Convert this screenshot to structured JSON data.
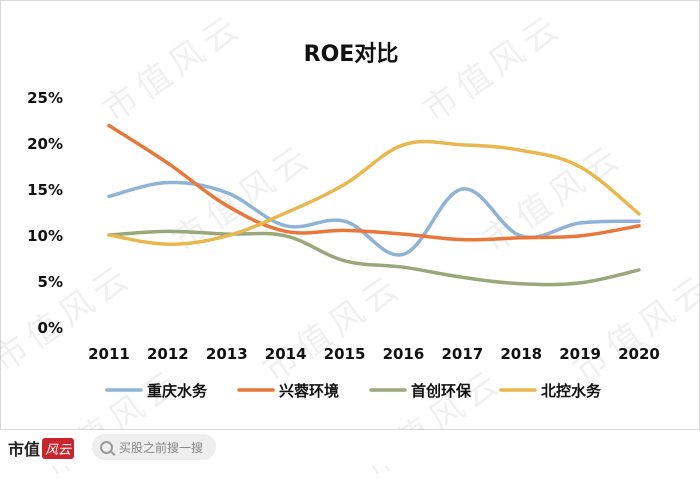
{
  "chart_data": {
    "type": "line",
    "title": "ROE对比",
    "categories": [
      "2011",
      "2012",
      "2013",
      "2014",
      "2015",
      "2016",
      "2017",
      "2018",
      "2019",
      "2020"
    ],
    "y_ticks": [
      "0%",
      "5%",
      "10%",
      "15%",
      "20%",
      "25%"
    ],
    "ylim": [
      0,
      25
    ],
    "grid": false,
    "legend_position": "bottom",
    "series": [
      {
        "name": "重庆水务",
        "color": "#8fb3d6",
        "values": [
          14.2,
          15.7,
          14.6,
          11.0,
          11.5,
          7.9,
          15.0,
          9.9,
          11.3,
          11.5
        ]
      },
      {
        "name": "兴蓉环境",
        "color": "#e8773a",
        "values": [
          21.9,
          17.8,
          13.2,
          10.4,
          10.5,
          10.1,
          9.5,
          9.7,
          9.9,
          11.0
        ]
      },
      {
        "name": "首创环保",
        "color": "#9aa77a",
        "values": [
          10.0,
          10.4,
          10.1,
          9.9,
          7.2,
          6.5,
          5.4,
          4.7,
          4.8,
          6.2
        ]
      },
      {
        "name": "北控水务",
        "color": "#e8b84f",
        "values": [
          10.0,
          9.0,
          9.9,
          12.4,
          15.5,
          19.8,
          19.8,
          19.2,
          17.4,
          12.3
        ]
      }
    ]
  },
  "watermark": "市值风云",
  "footer": {
    "brand": "市值",
    "brand_seal": "风云",
    "search_placeholder": "买股之前搜一搜"
  }
}
